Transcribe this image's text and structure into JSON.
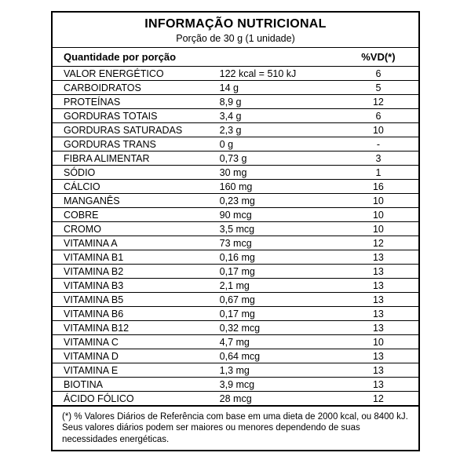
{
  "header": {
    "title": "INFORMAÇÃO NUTRICIONAL",
    "serving": "Porção de 30 g (1 unidade)"
  },
  "columns": {
    "left": "Quantidade por porção",
    "right": "%VD(*)"
  },
  "rows": [
    {
      "name": "VALOR ENERGÉTICO",
      "amount": "122 kcal = 510 kJ",
      "vd": "6"
    },
    {
      "name": "CARBOIDRATOS",
      "amount": "14 g",
      "vd": "5"
    },
    {
      "name": "PROTEÍNAS",
      "amount": "8,9 g",
      "vd": "12"
    },
    {
      "name": "GORDURAS TOTAIS",
      "amount": "3,4 g",
      "vd": "6"
    },
    {
      "name": "GORDURAS SATURADAS",
      "amount": "2,3 g",
      "vd": "10"
    },
    {
      "name": "GORDURAS TRANS",
      "amount": "0 g",
      "vd": "-"
    },
    {
      "name": "FIBRA ALIMENTAR",
      "amount": "0,73 g",
      "vd": "3"
    },
    {
      "name": "SÓDIO",
      "amount": "30 mg",
      "vd": "1"
    },
    {
      "name": "CÁLCIO",
      "amount": "160 mg",
      "vd": "16"
    },
    {
      "name": "MANGANÊS",
      "amount": "0,23 mg",
      "vd": "10"
    },
    {
      "name": "COBRE",
      "amount": "90 mcg",
      "vd": "10"
    },
    {
      "name": "CROMO",
      "amount": "3,5 mcg",
      "vd": "10"
    },
    {
      "name": "VITAMINA A",
      "amount": "73 mcg",
      "vd": "12"
    },
    {
      "name": "VITAMINA B1",
      "amount": "0,16 mg",
      "vd": "13"
    },
    {
      "name": "VITAMINA B2",
      "amount": "0,17 mg",
      "vd": "13"
    },
    {
      "name": "VITAMINA B3",
      "amount": "2,1 mg",
      "vd": "13"
    },
    {
      "name": "VITAMINA B5",
      "amount": "0,67 mg",
      "vd": "13"
    },
    {
      "name": "VITAMINA B6",
      "amount": "0,17 mg",
      "vd": "13"
    },
    {
      "name": "VITAMINA B12",
      "amount": "0,32 mcg",
      "vd": "13"
    },
    {
      "name": "VITAMINA C",
      "amount": "4,7 mg",
      "vd": "10"
    },
    {
      "name": "VITAMINA D",
      "amount": "0,64 mcg",
      "vd": "13"
    },
    {
      "name": "VITAMINA E",
      "amount": "1,3 mg",
      "vd": "13"
    },
    {
      "name": "BIOTINA",
      "amount": "3,9 mcg",
      "vd": "13"
    },
    {
      "name": "ÁCIDO FÓLICO",
      "amount": "28 mcg",
      "vd": "12"
    }
  ],
  "footnote": "(*) % Valores Diários de Referência com base em uma dieta de 2000 kcal, ou 8400 kJ. Seus valores diários podem ser maiores ou menores dependendo de suas necessidades energéticas."
}
